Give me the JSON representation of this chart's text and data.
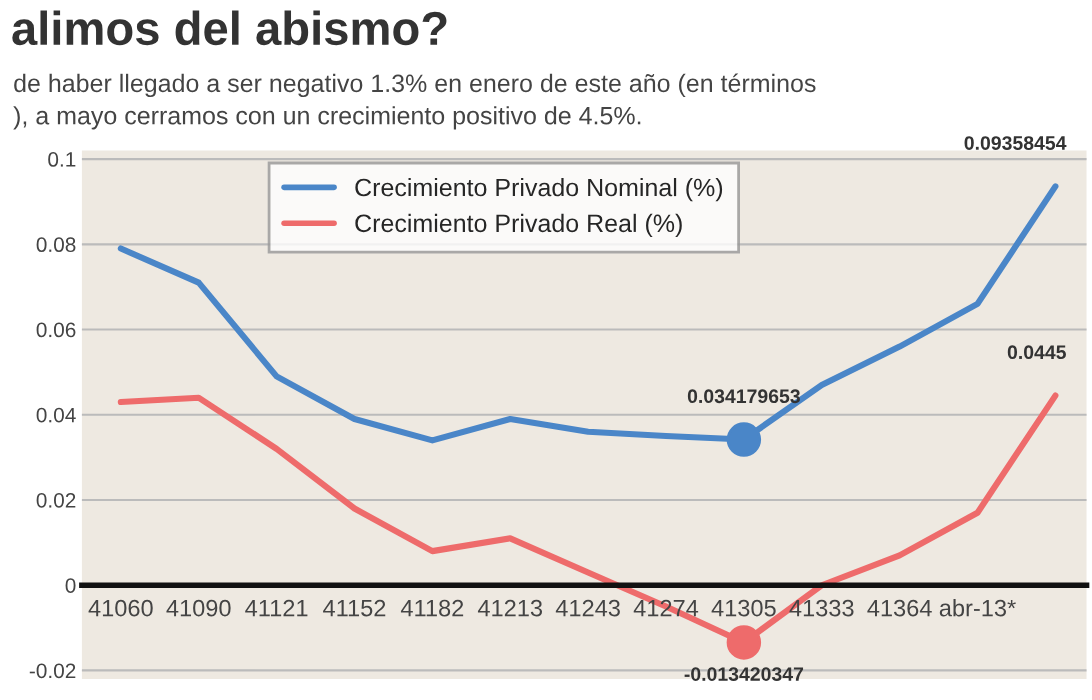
{
  "chart_data": {
    "type": "line",
    "title": "alimos del abismo?",
    "subtitle": "de haber llegado a ser negativo 1.3% en enero de este año (en términos\n), a mayo cerramos con un crecimiento positivo de 4.5%.",
    "categories": [
      "41060",
      "41090",
      "41121",
      "41152",
      "41182",
      "41213",
      "41243",
      "41274",
      "41305",
      "41333",
      "41364",
      "abr-13*",
      null
    ],
    "series": [
      {
        "name": "Crecimiento Privado Nominal (%)",
        "color": "#4a86c8",
        "values": [
          0.079,
          0.071,
          0.049,
          0.039,
          0.034,
          0.039,
          0.036,
          0.035,
          0.034179653,
          0.047,
          0.056,
          0.066,
          0.09358454
        ],
        "value_labels": [
          null,
          null,
          null,
          null,
          null,
          null,
          null,
          null,
          "0.034179653",
          null,
          null,
          null,
          "0.09358454"
        ]
      },
      {
        "name": "Crecimiento Privado Real (%)",
        "color": "#ee6b6b",
        "values": [
          0.043,
          0.044,
          0.032,
          0.018,
          0.008,
          0.011,
          0.003,
          -0.005,
          -0.013420347,
          0.0,
          0.007,
          0.017,
          0.0445
        ],
        "value_labels": [
          null,
          null,
          null,
          null,
          null,
          null,
          null,
          null,
          "-0.013420347",
          null,
          null,
          null,
          "0.0445"
        ]
      },
      {
        "type": "scatter",
        "color": "#4a86c8",
        "x": [
          "41305"
        ],
        "values": [
          0.034179653
        ]
      },
      {
        "type": "scatter",
        "color": "#ee6b6b",
        "x": [
          "41305"
        ],
        "values": [
          -0.013420347
        ]
      }
    ],
    "ylim": [
      -0.022,
      0.102
    ],
    "yticks": [
      {
        "value": -0.02,
        "label": "-0.02"
      },
      {
        "value": 0,
        "label": "0"
      },
      {
        "value": 0.02,
        "label": "0.02"
      },
      {
        "value": 0.04,
        "label": "0.04"
      },
      {
        "value": 0.06,
        "label": "0.06"
      },
      {
        "value": 0.08,
        "label": "0.08"
      },
      {
        "value": 0.1,
        "label": "0.1"
      }
    ],
    "grid": "y",
    "legend": "top"
  }
}
